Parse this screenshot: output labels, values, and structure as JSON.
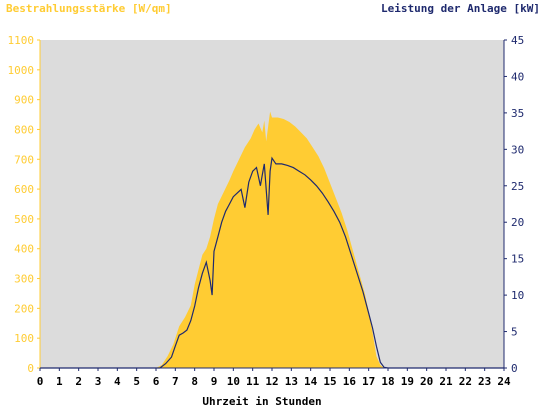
{
  "colors": {
    "plot_bg": "#dcdcdc",
    "irradiance": "#ffcc33",
    "irradiance_axis": "#ffcc33",
    "power": "#1f2a6e",
    "power_axis": "#1f2a6e",
    "x_axis_text": "#000000"
  },
  "chart_data": {
    "type": "area",
    "title_left": "Bestrahlungsstärke [W/qm]",
    "title_right": "Leistung der Anlage [kW]",
    "xlabel": "Uhrzeit in Stunden",
    "xlim": [
      0,
      24
    ],
    "x_ticks": [
      "0",
      "1",
      "2",
      "3",
      "4",
      "5",
      "6",
      "7",
      "8",
      "9",
      "10",
      "11",
      "12",
      "13",
      "14",
      "15",
      "16",
      "17",
      "18",
      "19",
      "20",
      "21",
      "22",
      "23",
      "24"
    ],
    "ylim_left": [
      0,
      1100
    ],
    "y_ticks_left": [
      "0",
      "100",
      "200",
      "300",
      "400",
      "500",
      "600",
      "700",
      "800",
      "900",
      "1000",
      "1100"
    ],
    "ylim_right": [
      0,
      45
    ],
    "y_ticks_right": [
      "0",
      "5",
      "10",
      "15",
      "20",
      "25",
      "30",
      "35",
      "40",
      "45"
    ],
    "grid": false,
    "series": [
      {
        "name": "Bestrahlungsstärke",
        "axis": "left",
        "type": "area",
        "x": [
          0,
          6.0,
          6.3,
          6.6,
          6.9,
          7.2,
          7.5,
          7.8,
          8.0,
          8.2,
          8.4,
          8.6,
          8.8,
          9.0,
          9.2,
          9.5,
          9.8,
          10.0,
          10.3,
          10.6,
          10.9,
          11.1,
          11.3,
          11.5,
          11.6,
          11.7,
          11.9,
          12.0,
          12.3,
          12.6,
          12.9,
          13.2,
          13.5,
          13.8,
          14.1,
          14.4,
          14.7,
          15.0,
          15.3,
          15.6,
          15.9,
          16.2,
          16.5,
          16.8,
          17.0,
          17.2,
          17.4,
          17.6,
          17.8,
          18.0,
          24
        ],
        "values": [
          0,
          0,
          10,
          40,
          80,
          140,
          170,
          210,
          280,
          330,
          380,
          400,
          440,
          500,
          550,
          590,
          630,
          660,
          700,
          740,
          770,
          800,
          820,
          790,
          830,
          760,
          860,
          840,
          840,
          835,
          825,
          810,
          790,
          770,
          740,
          710,
          670,
          620,
          570,
          520,
          460,
          390,
          320,
          250,
          190,
          120,
          40,
          10,
          0,
          0,
          0
        ]
      },
      {
        "name": "Leistung",
        "axis": "right",
        "type": "line",
        "x": [
          0,
          6.2,
          6.5,
          6.8,
          7.0,
          7.2,
          7.4,
          7.6,
          7.8,
          8.0,
          8.2,
          8.4,
          8.6,
          8.8,
          8.9,
          9.0,
          9.2,
          9.4,
          9.6,
          9.8,
          10.0,
          10.2,
          10.4,
          10.6,
          10.8,
          11.0,
          11.2,
          11.4,
          11.5,
          11.6,
          11.8,
          11.9,
          12.0,
          12.2,
          12.5,
          12.8,
          13.1,
          13.4,
          13.7,
          14.0,
          14.3,
          14.6,
          14.9,
          15.2,
          15.5,
          15.8,
          16.1,
          16.4,
          16.7,
          17.0,
          17.2,
          17.4,
          17.6,
          17.8,
          18.0,
          18.3,
          24
        ],
        "values": [
          0,
          0,
          0.6,
          1.5,
          3.0,
          4.5,
          4.8,
          5.2,
          6.5,
          8.5,
          11.0,
          13.0,
          14.5,
          12.0,
          10.0,
          16.0,
          18.0,
          20.0,
          21.5,
          22.5,
          23.5,
          24.0,
          24.5,
          22.0,
          25.5,
          27.0,
          27.5,
          25.0,
          26.5,
          28.0,
          21.0,
          27.0,
          28.8,
          28.0,
          28.0,
          27.8,
          27.5,
          27.0,
          26.5,
          25.8,
          25.0,
          24.0,
          22.8,
          21.5,
          20.0,
          18.0,
          15.5,
          13.0,
          10.5,
          7.5,
          5.5,
          3.0,
          0.8,
          0.1,
          0,
          0,
          0
        ]
      }
    ]
  }
}
